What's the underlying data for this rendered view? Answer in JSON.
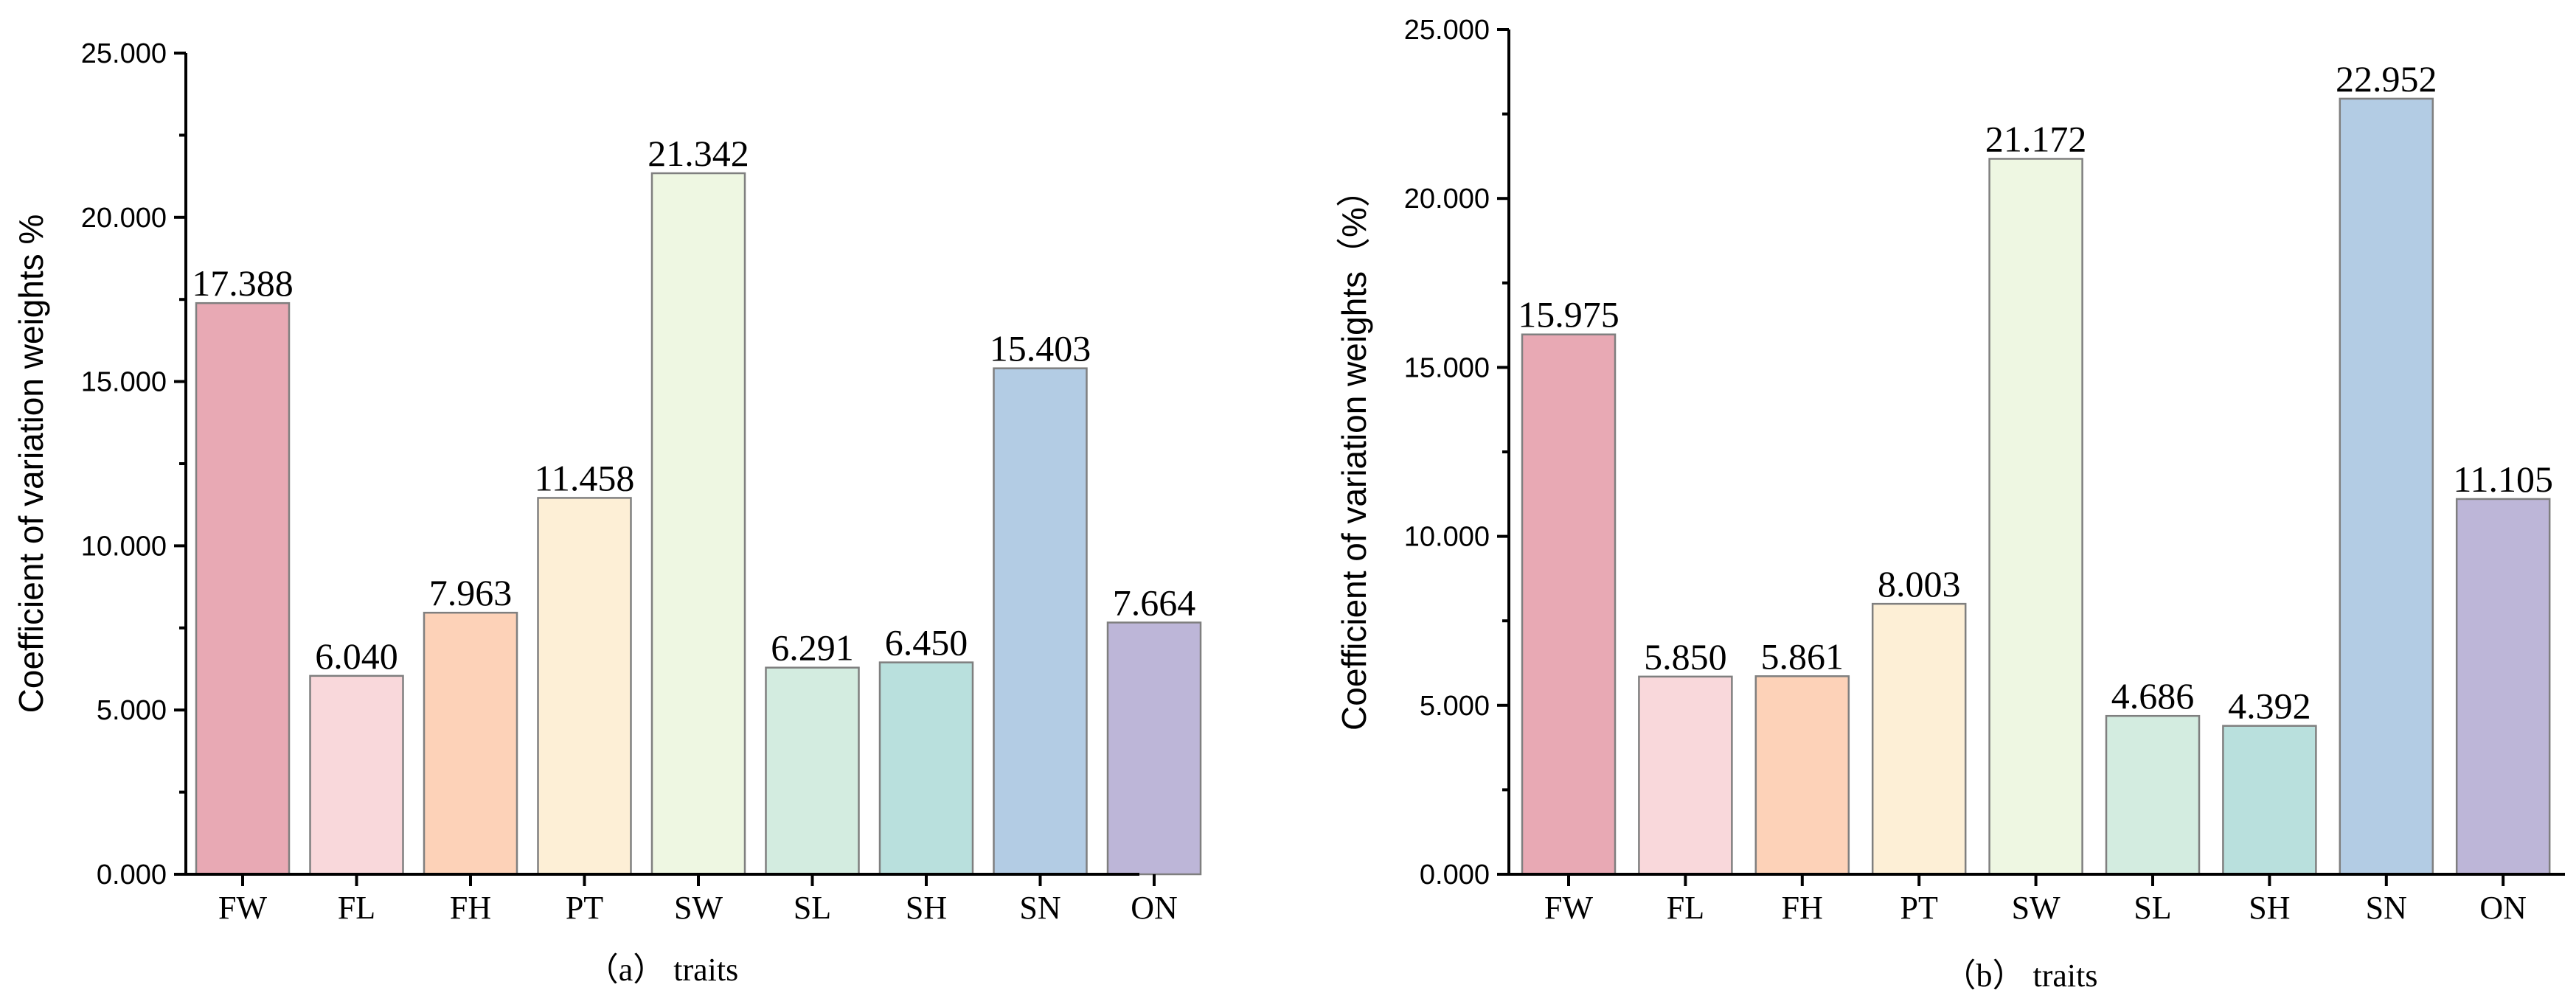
{
  "chart_data": [
    {
      "type": "bar",
      "panel": "a",
      "categories": [
        "FW",
        "FL",
        "FH",
        "PT",
        "SW",
        "SL",
        "SH",
        "SN",
        "ON"
      ],
      "values": [
        17.388,
        6.04,
        7.963,
        11.458,
        21.342,
        6.291,
        6.45,
        15.403,
        7.664
      ],
      "data_labels": [
        "17.388",
        "6.040",
        "7.963",
        "11.458",
        "21.342",
        "6.291",
        "6.450",
        "15.403",
        "7.664"
      ],
      "xlabel": "（a）  traits",
      "ylabel": "Coefficient of variation weights %",
      "ylim": [
        0,
        25
      ],
      "yticks": [
        0,
        5,
        10,
        15,
        20,
        25
      ],
      "ytick_labels": [
        "0.000",
        "5.000",
        "10.000",
        "15.000",
        "20.000",
        "25.000"
      ],
      "colors": [
        "#e8a9b4",
        "#f9d8db",
        "#fdd2b8",
        "#fdefd6",
        "#eef7e2",
        "#d3ece0",
        "#b9e0dd",
        "#b3cce4",
        "#bdb6d8"
      ],
      "grid": false
    },
    {
      "type": "bar",
      "panel": "b",
      "categories": [
        "FW",
        "FL",
        "FH",
        "PT",
        "SW",
        "SL",
        "SH",
        "SN",
        "ON"
      ],
      "values": [
        15.975,
        5.85,
        5.861,
        8.003,
        21.172,
        4.686,
        4.392,
        22.952,
        11.105
      ],
      "data_labels": [
        "15.975",
        "5.850",
        "5.861",
        "8.003",
        "21.172",
        "4.686",
        "4.392",
        "22.952",
        "11.105"
      ],
      "xlabel": "（b）  traits",
      "ylabel": "Coefficient of variation weights（%）",
      "ylim": [
        0,
        25
      ],
      "yticks": [
        0,
        5,
        10,
        15,
        20,
        25
      ],
      "ytick_labels": [
        "0.000",
        "5.000",
        "10.000",
        "15.000",
        "20.000",
        "25.000"
      ],
      "colors": [
        "#e8a9b4",
        "#f9d8db",
        "#fdd2b8",
        "#fdefd6",
        "#eef7e2",
        "#d3ece0",
        "#b9e0dd",
        "#b3cce4",
        "#bdb6d8"
      ],
      "grid": false
    }
  ]
}
